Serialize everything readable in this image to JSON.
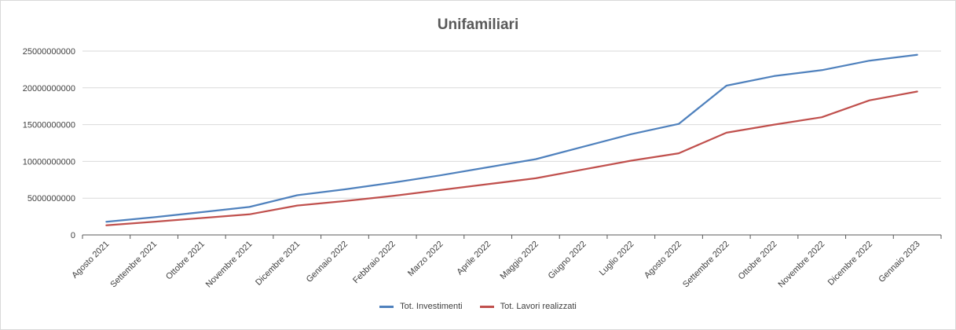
{
  "chart_data": {
    "type": "line",
    "title": "Unifamiliari",
    "xlabel": "",
    "ylabel": "",
    "categories": [
      "Agosto 2021",
      "Settembre 2021",
      "Ottobre 2021",
      "Novembre 2021",
      "Dicembre 2021",
      "Gennaio 2022",
      "Febbraio 2022",
      "Marzo 2022",
      "Aprile 2022",
      "Maggio 2022",
      "Giugno 2022",
      "Luglio 2022",
      "Agosto 2022",
      "Settembre 2022",
      "Ottobre 2022",
      "Novembre 2022",
      "Dicembre 2022",
      "Gennaio 2023"
    ],
    "ylim": [
      0,
      25000000000
    ],
    "yticks": [
      0,
      5000000000,
      10000000000,
      15000000000,
      20000000000,
      25000000000
    ],
    "ytick_labels": [
      "0",
      "5000000000",
      "10000000000",
      "15000000000",
      "20000000000",
      "25000000000"
    ],
    "grid": true,
    "legend_position": "bottom",
    "series": [
      {
        "name": "Tot. Investimenti",
        "color": "#4f81bd",
        "values": [
          1800000000,
          2400000000,
          3100000000,
          3800000000,
          5400000000,
          6200000000,
          7100000000,
          8100000000,
          9200000000,
          10300000000,
          12000000000,
          13700000000,
          15100000000,
          20300000000,
          21600000000,
          22400000000,
          23700000000,
          24500000000
        ]
      },
      {
        "name": "Tot. Lavori realizzati",
        "color": "#c0504d",
        "values": [
          1300000000,
          1800000000,
          2300000000,
          2800000000,
          4000000000,
          4600000000,
          5300000000,
          6100000000,
          6900000000,
          7700000000,
          8900000000,
          10100000000,
          11100000000,
          13900000000,
          15000000000,
          16000000000,
          18300000000,
          19500000000
        ]
      }
    ]
  }
}
